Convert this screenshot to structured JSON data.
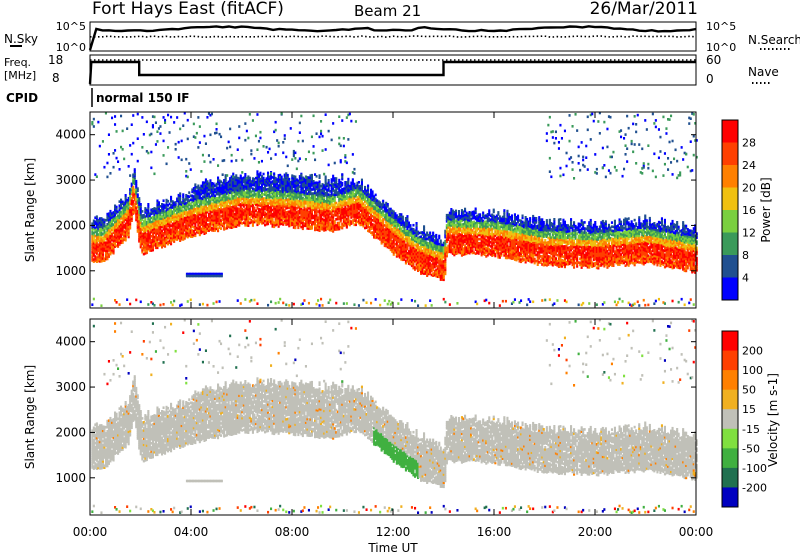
{
  "header": {
    "station": "Fort Hays East (fitACF)",
    "beam": "Beam 21",
    "date": "26/Mar/2011"
  },
  "noise_panel": {
    "left_label": "N.Sky",
    "left_ticks": [
      "10^5",
      "10^0"
    ],
    "right_label": "N.Search",
    "right_ticks": [
      "10^5",
      "10^0"
    ]
  },
  "freq_panel": {
    "left_label_1": "Freq.",
    "left_label_2": "[MHz]",
    "left_ticks": [
      "18",
      "8"
    ],
    "right_label": "Nave",
    "right_ticks": [
      "60",
      "0"
    ]
  },
  "cpid_panel": {
    "label": "CPID",
    "mode": "normal 150 IF"
  },
  "chart_data": [
    {
      "type": "heatmap",
      "name": "Power",
      "ylabel": "Slant Range [km]",
      "ylim": [
        180,
        4500
      ],
      "yticks": [
        "1000",
        "2000",
        "3000",
        "4000"
      ],
      "xlim": [
        0,
        24
      ],
      "colorbar_label": "Power [dB]",
      "colorbar_ticks": [
        "4",
        "8",
        "12",
        "16",
        "20",
        "24",
        "28"
      ],
      "colors": [
        "#0000ff",
        "#205090",
        "#3a9a5a",
        "#7ad040",
        "#f0c010",
        "#ff8000",
        "#ff4000",
        "#ff0000"
      ],
      "main_echo_ridge_km": [
        [
          0.0,
          1500
        ],
        [
          0.5,
          1500
        ],
        [
          1.5,
          2100
        ],
        [
          1.7,
          2700
        ],
        [
          2.0,
          1700
        ],
        [
          4.0,
          2100
        ],
        [
          6.0,
          2350
        ],
        [
          8.0,
          2300
        ],
        [
          9.5,
          2200
        ],
        [
          10.6,
          2380
        ],
        [
          12.0,
          1700
        ],
        [
          13.0,
          1300
        ],
        [
          14.0,
          1100
        ],
        [
          14.1,
          1700
        ],
        [
          16.0,
          1650
        ],
        [
          18.0,
          1450
        ],
        [
          20.0,
          1400
        ],
        [
          22.0,
          1500
        ],
        [
          24.0,
          1300
        ]
      ]
    },
    {
      "type": "heatmap",
      "name": "Velocity",
      "ylabel": "Slant Range [km]",
      "ylim": [
        180,
        4500
      ],
      "yticks": [
        "1000",
        "2000",
        "3000",
        "4000"
      ],
      "xlim": [
        0,
        24
      ],
      "colorbar_label": "Velocity [m s-1]",
      "colorbar_ticks": [
        "200",
        "100",
        "50",
        "15",
        "-15",
        "-50",
        "-100",
        "-200"
      ],
      "colors": [
        "#0000c0",
        "#207050",
        "#40b040",
        "#80e040",
        "#c0c0b8",
        "#f0b020",
        "#ff8000",
        "#ff4000",
        "#ff0000"
      ],
      "ground_scatter_color": "#c0c0b8"
    }
  ],
  "xaxis": {
    "label": "Time UT",
    "ticks": [
      "00:00",
      "04:00",
      "08:00",
      "12:00",
      "16:00",
      "20:00",
      "00:00"
    ]
  }
}
